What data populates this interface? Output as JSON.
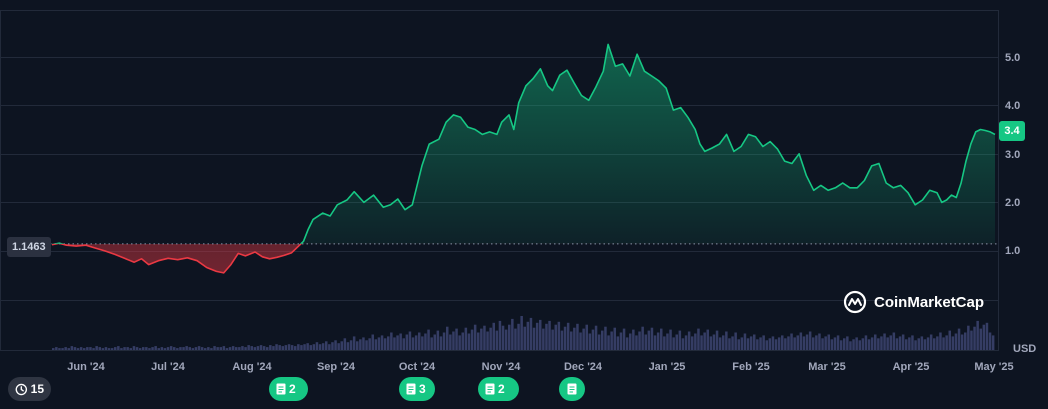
{
  "chart_data": {
    "type": "area",
    "baseline": 1.1463,
    "baseline_label": "1.1463",
    "current_price": "3.4",
    "currency": "USD",
    "ylim": [
      0.0,
      5.8
    ],
    "y_ticks": [
      "1.0",
      "2.0",
      "3.0",
      "4.0",
      "5.0"
    ],
    "x_ticks": [
      "Jun '24",
      "Jul '24",
      "Aug '24",
      "Sep '24",
      "Oct '24",
      "Nov '24",
      "Dec '24",
      "Jan '25",
      "Feb '25",
      "Mar '25",
      "Apr '25",
      "May '25"
    ],
    "grid": true,
    "series": [
      {
        "values": [
          [
            0,
            1.13
          ],
          [
            3,
            1.16
          ],
          [
            6,
            1.12
          ],
          [
            10,
            1.1
          ],
          [
            14,
            1.12
          ],
          [
            18,
            1.06
          ],
          [
            22,
            1.0
          ],
          [
            26,
            0.93
          ],
          [
            30,
            0.85
          ],
          [
            34,
            0.77
          ],
          [
            37,
            0.84
          ],
          [
            40,
            0.72
          ],
          [
            44,
            0.8
          ],
          [
            48,
            0.85
          ],
          [
            52,
            0.82
          ],
          [
            56,
            0.86
          ],
          [
            60,
            0.8
          ],
          [
            64,
            0.66
          ],
          [
            68,
            0.58
          ],
          [
            71,
            0.55
          ],
          [
            74,
            0.72
          ],
          [
            77,
            0.95
          ],
          [
            80,
            0.9
          ],
          [
            84,
            0.98
          ],
          [
            87,
            0.88
          ],
          [
            90,
            0.84
          ],
          [
            93,
            0.87
          ],
          [
            96,
            0.91
          ],
          [
            99,
            0.96
          ],
          [
            102,
            1.1
          ],
          [
            104,
            1.2
          ],
          [
            106,
            1.45
          ],
          [
            108,
            1.65
          ],
          [
            112,
            1.78
          ],
          [
            115,
            1.72
          ],
          [
            118,
            1.95
          ],
          [
            122,
            2.05
          ],
          [
            125,
            2.22
          ],
          [
            129,
            2.0
          ],
          [
            133,
            2.15
          ],
          [
            137,
            1.9
          ],
          [
            140,
            1.95
          ],
          [
            143,
            2.07
          ],
          [
            146,
            1.85
          ],
          [
            149,
            1.95
          ],
          [
            153,
            2.75
          ],
          [
            156,
            3.2
          ],
          [
            160,
            3.3
          ],
          [
            163,
            3.65
          ],
          [
            166,
            3.8
          ],
          [
            169,
            3.75
          ],
          [
            172,
            3.55
          ],
          [
            175,
            3.5
          ],
          [
            178,
            3.4
          ],
          [
            181,
            3.45
          ],
          [
            184,
            3.4
          ],
          [
            186,
            3.65
          ],
          [
            189,
            3.8
          ],
          [
            191,
            3.5
          ],
          [
            193,
            4.05
          ],
          [
            196,
            4.4
          ],
          [
            199,
            4.55
          ],
          [
            202,
            4.75
          ],
          [
            205,
            4.4
          ],
          [
            207,
            4.3
          ],
          [
            210,
            4.62
          ],
          [
            213,
            4.72
          ],
          [
            216,
            4.45
          ],
          [
            219,
            4.2
          ],
          [
            222,
            4.1
          ],
          [
            225,
            4.38
          ],
          [
            228,
            4.7
          ],
          [
            230,
            5.25
          ],
          [
            233,
            4.8
          ],
          [
            236,
            4.85
          ],
          [
            239,
            4.6
          ],
          [
            242,
            5.05
          ],
          [
            245,
            4.7
          ],
          [
            248,
            4.6
          ],
          [
            251,
            4.5
          ],
          [
            254,
            4.35
          ],
          [
            257,
            3.9
          ],
          [
            260,
            3.95
          ],
          [
            263,
            3.75
          ],
          [
            266,
            3.5
          ],
          [
            268,
            3.2
          ],
          [
            270,
            3.05
          ],
          [
            273,
            3.12
          ],
          [
            276,
            3.2
          ],
          [
            279,
            3.4
          ],
          [
            282,
            3.05
          ],
          [
            285,
            3.15
          ],
          [
            288,
            3.4
          ],
          [
            291,
            3.35
          ],
          [
            294,
            3.15
          ],
          [
            297,
            3.25
          ],
          [
            300,
            3.1
          ],
          [
            303,
            2.85
          ],
          [
            306,
            2.8
          ],
          [
            309,
            3.0
          ],
          [
            312,
            2.55
          ],
          [
            315,
            2.25
          ],
          [
            318,
            2.35
          ],
          [
            321,
            2.25
          ],
          [
            324,
            2.3
          ],
          [
            327,
            2.4
          ],
          [
            330,
            2.3
          ],
          [
            333,
            2.3
          ],
          [
            336,
            2.45
          ],
          [
            339,
            2.75
          ],
          [
            342,
            2.8
          ],
          [
            345,
            2.4
          ],
          [
            348,
            2.3
          ],
          [
            351,
            2.35
          ],
          [
            354,
            2.2
          ],
          [
            357,
            1.95
          ],
          [
            360,
            2.05
          ],
          [
            363,
            2.25
          ],
          [
            366,
            2.2
          ],
          [
            368,
            2.0
          ],
          [
            370,
            2.05
          ],
          [
            372,
            2.15
          ],
          [
            374,
            2.1
          ],
          [
            376,
            2.4
          ],
          [
            378,
            2.85
          ],
          [
            380,
            3.2
          ],
          [
            382,
            3.45
          ],
          [
            384,
            3.5
          ],
          [
            386,
            3.48
          ],
          [
            388,
            3.45
          ],
          [
            390,
            3.4
          ]
        ]
      }
    ],
    "volume": [
      2,
      3,
      2,
      2,
      3,
      2,
      4,
      3,
      2,
      3,
      2,
      3,
      3,
      2,
      4,
      3,
      2,
      3,
      2,
      2,
      3,
      4,
      2,
      3,
      3,
      2,
      4,
      3,
      2,
      3,
      3,
      2,
      3,
      4,
      2,
      3,
      2,
      3,
      4,
      3,
      2,
      3,
      3,
      4,
      3,
      2,
      3,
      4,
      3,
      2,
      3,
      2,
      4,
      3,
      3,
      4,
      2,
      3,
      4,
      3,
      3,
      4,
      3,
      5,
      4,
      3,
      4,
      5,
      4,
      3,
      5,
      4,
      6,
      5,
      4,
      5,
      6,
      5,
      4,
      6,
      5,
      6,
      7,
      5,
      6,
      8,
      6,
      7,
      9,
      6,
      8,
      10,
      7,
      9,
      12,
      8,
      10,
      14,
      9,
      11,
      13,
      10,
      12,
      16,
      11,
      13,
      15,
      12,
      14,
      18,
      13,
      15,
      17,
      12,
      16,
      19,
      13,
      15,
      18,
      14,
      17,
      21,
      13,
      16,
      20,
      14,
      18,
      24,
      16,
      19,
      22,
      15,
      18,
      23,
      17,
      21,
      26,
      18,
      22,
      25,
      19,
      23,
      28,
      20,
      30,
      25,
      21,
      26,
      32,
      22,
      27,
      35,
      24,
      29,
      33,
      23,
      28,
      31,
      22,
      27,
      30,
      21,
      26,
      29,
      20,
      24,
      28,
      19,
      23,
      27,
      18,
      22,
      26,
      17,
      21,
      25,
      16,
      20,
      24,
      15,
      19,
      23,
      14,
      18,
      22,
      13,
      17,
      21,
      15,
      19,
      24,
      16,
      20,
      23,
      15,
      18,
      22,
      14,
      17,
      21,
      13,
      16,
      20,
      12,
      15,
      19,
      14,
      17,
      22,
      15,
      18,
      21,
      14,
      16,
      20,
      13,
      15,
      19,
      12,
      14,
      18,
      11,
      13,
      17,
      12,
      14,
      16,
      11,
      13,
      15,
      10,
      12,
      14,
      11,
      13,
      15,
      12,
      14,
      17,
      13,
      15,
      18,
      14,
      16,
      19,
      13,
      15,
      17,
      12,
      14,
      16,
      11,
      13,
      15,
      10,
      12,
      14,
      9,
      11,
      13,
      10,
      12,
      15,
      11,
      13,
      16,
      12,
      14,
      17,
      13,
      15,
      18,
      12,
      14,
      16,
      11,
      13,
      15,
      10,
      12,
      14,
      11,
      13,
      16,
      12,
      14,
      18,
      13,
      15,
      20,
      14,
      17,
      22,
      16,
      18,
      25,
      20,
      24,
      30,
      22,
      26,
      28,
      18,
      15
    ]
  },
  "logo_text": "CoinMarketCap",
  "badges": [
    {
      "icon": "history-icon",
      "count": "15",
      "dark": true
    },
    {
      "icon": "document-icon",
      "count": "2"
    },
    {
      "icon": "document-icon",
      "count": "3"
    },
    {
      "icon": "document-icon",
      "count": "2"
    },
    {
      "icon": "document-icon",
      "count": ""
    }
  ],
  "colors": {
    "up": "#16c784",
    "down": "#ea3943",
    "background": "#0d1421",
    "volume": "#3d4470"
  }
}
